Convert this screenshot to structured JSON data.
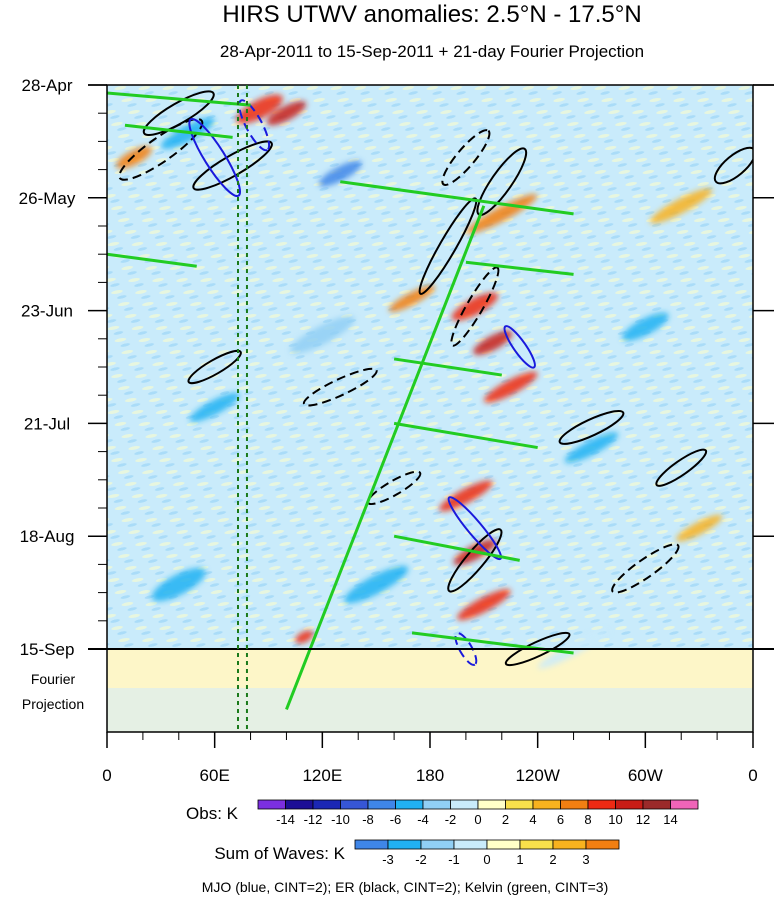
{
  "chart_data": {
    "type": "heatmap",
    "title": "HIRS UTWV anomalies: 2.5°N - 17.5°N",
    "subtitle": "28-Apr-2011 to 15-Sep-2011 + 21-day Fourier Projection",
    "y_ticks": [
      "28-Apr",
      "26-May",
      "23-Jun",
      "21-Jul",
      "18-Aug",
      "15-Sep"
    ],
    "projection_label": [
      "Fourier",
      "Projection"
    ],
    "x_ticks": [
      "0",
      "60E",
      "120E",
      "180",
      "120W",
      "60W",
      "0"
    ],
    "x_range_deg_east": [
      0,
      360
    ],
    "time_range": [
      "28-Apr-2011",
      "15-Sep-2011"
    ],
    "projection_days": 21,
    "reference_lines_lon_deg_east": [
      73,
      78
    ],
    "obs_colorbar": {
      "label": "Obs: K",
      "ticks": [
        "-14",
        "-12",
        "-10",
        "-8",
        "-6",
        "-4",
        "-2",
        "0",
        "2",
        "4",
        "6",
        "8",
        "10",
        "12",
        "14"
      ],
      "colors": [
        "#7b2fe0",
        "#1c0f96",
        "#1b27b4",
        "#3656d6",
        "#3f86e8",
        "#21b1f2",
        "#90cff5",
        "#c9ebfb",
        "#ffffc8",
        "#f9e04b",
        "#f8b21e",
        "#f27f12",
        "#ee2a13",
        "#c81c16",
        "#9b2a2a",
        "#f064b8"
      ]
    },
    "waves_colorbar": {
      "label": "Sum of Waves: K",
      "ticks": [
        "-3",
        "-2",
        "-1",
        "0",
        "1",
        "2",
        "3"
      ],
      "colors": [
        "#3f86e8",
        "#21b1f2",
        "#90cff5",
        "#c9ebfb",
        "#ffffc8",
        "#f9e04b",
        "#f8b21e",
        "#f27f12"
      ]
    },
    "legend_text": "MJO (blue, CINT=2); ER (black, CINT=2); Kelvin (green, CINT=3)",
    "contour_series": [
      {
        "name": "MJO",
        "color": "#1a1adc",
        "cint": 2
      },
      {
        "name": "ER",
        "color": "#000000",
        "cint": 2
      },
      {
        "name": "Kelvin",
        "color": "#22cc22",
        "cint": 3
      }
    ],
    "field_anomalies": [
      {
        "lon": 100,
        "day": 7,
        "value": 10,
        "rx": 22,
        "ry": 7
      },
      {
        "lon": 85,
        "day": 6,
        "value": 8,
        "rx": 26,
        "ry": 9
      },
      {
        "lon": 15,
        "day": 18,
        "value": 6,
        "rx": 20,
        "ry": 7
      },
      {
        "lon": 45,
        "day": 12,
        "value": -6,
        "rx": 30,
        "ry": 8
      },
      {
        "lon": 130,
        "day": 22,
        "value": -8,
        "rx": 24,
        "ry": 7
      },
      {
        "lon": 220,
        "day": 32,
        "value": 6,
        "rx": 40,
        "ry": 7
      },
      {
        "lon": 320,
        "day": 30,
        "value": 4,
        "rx": 35,
        "ry": 7
      },
      {
        "lon": 205,
        "day": 55,
        "value": 8,
        "rx": 26,
        "ry": 8
      },
      {
        "lon": 215,
        "day": 64,
        "value": 10,
        "rx": 22,
        "ry": 7
      },
      {
        "lon": 225,
        "day": 75,
        "value": 8,
        "rx": 30,
        "ry": 7
      },
      {
        "lon": 170,
        "day": 53,
        "value": 6,
        "rx": 26,
        "ry": 6
      },
      {
        "lon": 300,
        "day": 60,
        "value": -6,
        "rx": 26,
        "ry": 8
      },
      {
        "lon": 60,
        "day": 80,
        "value": -6,
        "rx": 28,
        "ry": 7
      },
      {
        "lon": 120,
        "day": 62,
        "value": -4,
        "rx": 36,
        "ry": 9
      },
      {
        "lon": 200,
        "day": 102,
        "value": 8,
        "rx": 30,
        "ry": 7
      },
      {
        "lon": 205,
        "day": 116,
        "value": 10,
        "rx": 24,
        "ry": 7
      },
      {
        "lon": 210,
        "day": 129,
        "value": 8,
        "rx": 30,
        "ry": 7
      },
      {
        "lon": 150,
        "day": 124,
        "value": -6,
        "rx": 36,
        "ry": 9
      },
      {
        "lon": 40,
        "day": 124,
        "value": -6,
        "rx": 30,
        "ry": 10
      },
      {
        "lon": 270,
        "day": 90,
        "value": -6,
        "rx": 30,
        "ry": 7
      },
      {
        "lon": 110,
        "day": 137,
        "value": 8,
        "rx": 10,
        "ry": 5
      },
      {
        "lon": 330,
        "day": 110,
        "value": 4,
        "rx": 26,
        "ry": 6
      },
      {
        "lon": 260,
        "day": 140,
        "value": -2,
        "rx": 40,
        "ry": 6
      }
    ]
  }
}
